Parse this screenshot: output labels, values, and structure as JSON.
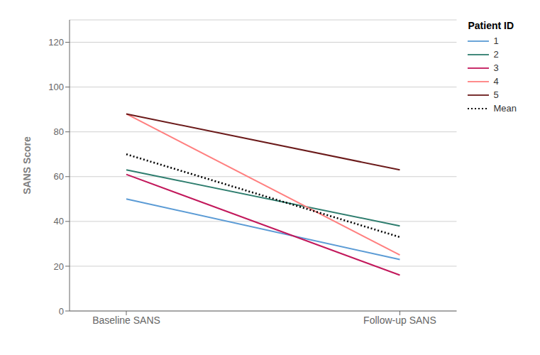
{
  "chart_data": {
    "type": "line",
    "categories": [
      "Baseline SANS",
      "Follow-up SANS"
    ],
    "ylabel": "SANS Score",
    "legend_title": "Patient ID",
    "series": [
      {
        "name": "1",
        "color": "#5B9BD5",
        "values": [
          50,
          23
        ],
        "line_style": "solid"
      },
      {
        "name": "2",
        "color": "#2E7D6E",
        "values": [
          63,
          38
        ],
        "line_style": "solid"
      },
      {
        "name": "3",
        "color": "#C2185B",
        "values": [
          61,
          16
        ],
        "line_style": "solid"
      },
      {
        "name": "4",
        "color": "#FF7F7F",
        "values": [
          88,
          25
        ],
        "line_style": "solid"
      },
      {
        "name": "5",
        "color": "#6B1A1A",
        "values": [
          88,
          63
        ],
        "line_style": "solid"
      },
      {
        "name": "Mean",
        "color": "#000000",
        "values": [
          70,
          33
        ],
        "line_style": "dotted"
      }
    ],
    "ylim": [
      0,
      130
    ],
    "yticks": [
      0,
      20,
      40,
      60,
      80,
      100,
      120
    ],
    "grid": true,
    "legend": "right"
  }
}
